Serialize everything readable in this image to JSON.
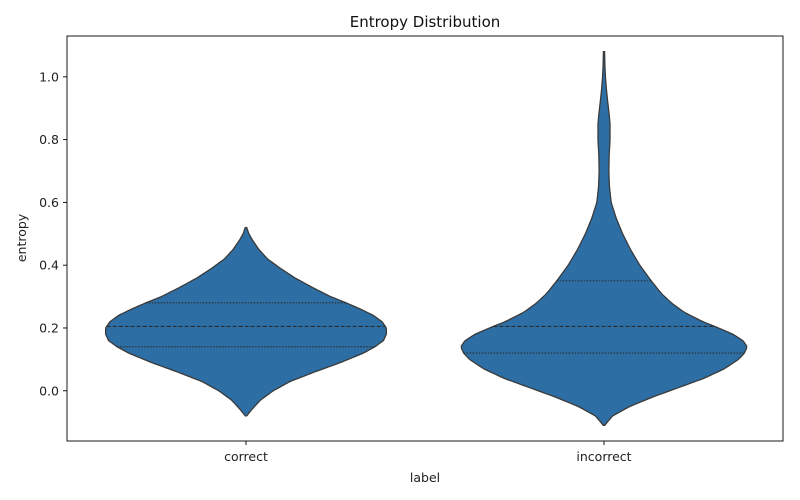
{
  "chart_data": {
    "type": "violin",
    "title": "Entropy Distribution",
    "xlabel": "label",
    "ylabel": "entropy",
    "categories": [
      "correct",
      "incorrect"
    ],
    "ylim": [
      -0.16,
      1.13
    ],
    "yticks": [
      0.0,
      0.2,
      0.4,
      0.6,
      0.8,
      1.0
    ],
    "ytick_labels": [
      "0.0",
      "0.2",
      "0.4",
      "0.6",
      "0.8",
      "1.0"
    ],
    "grid": false,
    "colors": {
      "fill": "#2d6fa5",
      "outline": "#3a3a3a",
      "quartile": "#2b2b2b"
    },
    "violins": [
      {
        "category": "correct",
        "quartiles": [
          0.14,
          0.205,
          0.28
        ],
        "profile": [
          [
            -0.08,
            0.005
          ],
          [
            -0.06,
            0.04
          ],
          [
            -0.03,
            0.1
          ],
          [
            0.0,
            0.19
          ],
          [
            0.03,
            0.31
          ],
          [
            0.06,
            0.48
          ],
          [
            0.09,
            0.66
          ],
          [
            0.12,
            0.82
          ],
          [
            0.14,
            0.9
          ],
          [
            0.16,
            0.96
          ],
          [
            0.18,
            0.98
          ],
          [
            0.2,
            0.98
          ],
          [
            0.22,
            0.95
          ],
          [
            0.24,
            0.89
          ],
          [
            0.26,
            0.8
          ],
          [
            0.28,
            0.7
          ],
          [
            0.3,
            0.59
          ],
          [
            0.33,
            0.46
          ],
          [
            0.36,
            0.34
          ],
          [
            0.39,
            0.24
          ],
          [
            0.42,
            0.15
          ],
          [
            0.45,
            0.09
          ],
          [
            0.48,
            0.045
          ],
          [
            0.5,
            0.02
          ],
          [
            0.52,
            0.005
          ]
        ]
      },
      {
        "category": "incorrect",
        "quartiles": [
          0.12,
          0.205,
          0.35
        ],
        "profile": [
          [
            -0.11,
            0.005
          ],
          [
            -0.08,
            0.06
          ],
          [
            -0.05,
            0.18
          ],
          [
            -0.02,
            0.34
          ],
          [
            0.01,
            0.52
          ],
          [
            0.04,
            0.7
          ],
          [
            0.07,
            0.84
          ],
          [
            0.1,
            0.94
          ],
          [
            0.12,
            0.98
          ],
          [
            0.14,
            1.0
          ],
          [
            0.16,
            0.97
          ],
          [
            0.18,
            0.9
          ],
          [
            0.2,
            0.8
          ],
          [
            0.22,
            0.69
          ],
          [
            0.25,
            0.56
          ],
          [
            0.28,
            0.47
          ],
          [
            0.31,
            0.4
          ],
          [
            0.35,
            0.33
          ],
          [
            0.4,
            0.25
          ],
          [
            0.45,
            0.185
          ],
          [
            0.5,
            0.13
          ],
          [
            0.55,
            0.085
          ],
          [
            0.6,
            0.05
          ],
          [
            0.65,
            0.038
          ],
          [
            0.7,
            0.034
          ],
          [
            0.75,
            0.036
          ],
          [
            0.8,
            0.042
          ],
          [
            0.85,
            0.042
          ],
          [
            0.88,
            0.036
          ],
          [
            0.92,
            0.026
          ],
          [
            0.96,
            0.017
          ],
          [
            1.0,
            0.01
          ],
          [
            1.04,
            0.006
          ],
          [
            1.08,
            0.004
          ]
        ]
      }
    ]
  }
}
